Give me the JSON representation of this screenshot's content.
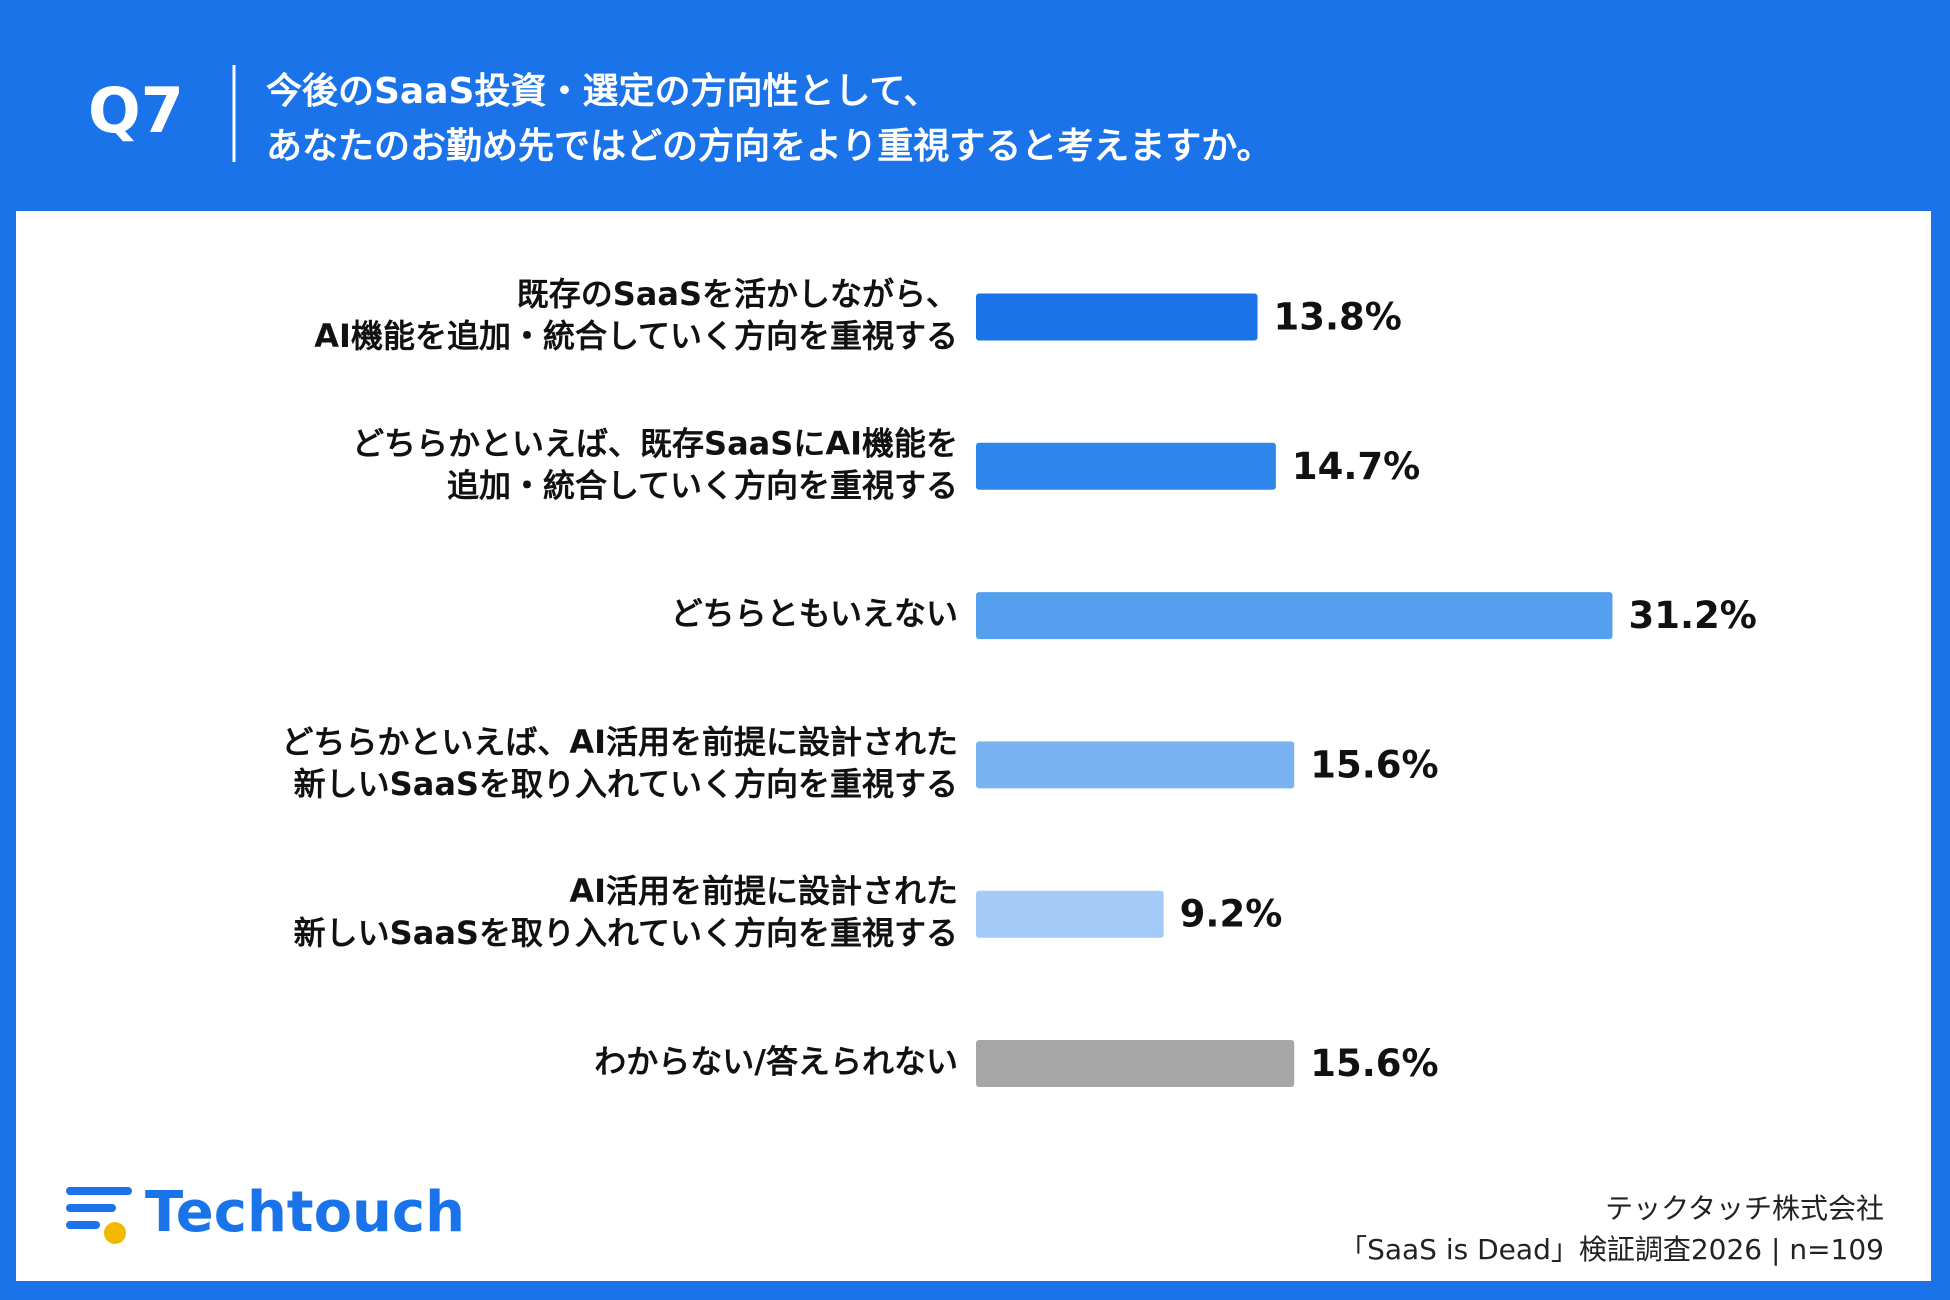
{
  "header": {
    "badge": "Q7",
    "question": [
      "今後のSaaS投資・選定の方向性として、",
      "あなたのお勤め先ではどの方向をより重視すると考えますか。"
    ]
  },
  "chart_data": {
    "type": "bar",
    "categories": [
      [
        "既存のSaaSを活かしながら、",
        "AI機能を追加・統合していく方向を重視する"
      ],
      [
        "どちらかといえば、既存SaaSにAI機能を",
        "追加・統合していく方向を重視する"
      ],
      [
        "どちらともいえない"
      ],
      [
        "どちらかといえば、AI活用を前提に設計された",
        "新しいSaaSを取り入れていく方向を重視する"
      ],
      [
        "AI活用を前提に設計された",
        "新しいSaaSを取り入れていく方向を重視する"
      ],
      [
        "わからない/答えられない"
      ]
    ],
    "values": [
      13.8,
      14.7,
      31.2,
      15.6,
      9.2,
      15.6
    ],
    "value_labels": [
      "13.8%",
      "14.7%",
      "31.2%",
      "15.6%",
      "9.2%",
      "15.6%"
    ],
    "colors": [
      "#1a73e8",
      "#2e86ea",
      "#55a0ee",
      "#7ab3f2",
      "#a4cbf7",
      "#a6a6a6"
    ]
  },
  "footer": {
    "brand": "Techtouch",
    "source": [
      "テックタッチ株式会社",
      "「SaaS is Dead」検証調査2026 | n=109"
    ]
  }
}
